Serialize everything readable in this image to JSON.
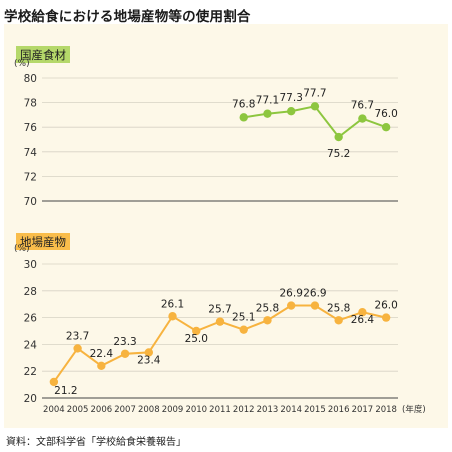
{
  "title": "学校給食における地場産物等の使用割合",
  "source": "資料：文部科学省「学校給食栄養報告」",
  "colors": {
    "national": "#8dc63f",
    "national_label_bg": "#b5d86a",
    "local": "#f7b33f",
    "local_label_bg": "#f9bd4b",
    "panel_bg": "#fdf8e8",
    "grid": "#d7d2c4"
  },
  "chart_data": [
    {
      "type": "line",
      "title": "国産食材",
      "unit_label": "(%)",
      "x": [
        "2012",
        "2013",
        "2014",
        "2015",
        "2016",
        "2017",
        "2018"
      ],
      "y": [
        76.8,
        77.1,
        77.3,
        77.7,
        75.2,
        76.7,
        76.0
      ],
      "data_labels": [
        "76.8",
        "77.1",
        "77.3",
        "77.7",
        "75.2",
        "76.7",
        "76.0"
      ],
      "ylim": [
        70,
        80
      ],
      "yticks": [
        "70",
        "72",
        "74",
        "76",
        "78",
        "80"
      ],
      "grid": true
    },
    {
      "type": "line",
      "title": "地場産物",
      "unit_label": "(%)",
      "x": [
        "2004",
        "2005",
        "2006",
        "2007",
        "2008",
        "2009",
        "2010",
        "2011",
        "2012",
        "2013",
        "2014",
        "2015",
        "2016",
        "2017",
        "2018"
      ],
      "y": [
        21.2,
        23.7,
        22.4,
        23.3,
        23.4,
        26.1,
        25.0,
        25.7,
        25.1,
        25.8,
        26.9,
        26.9,
        25.8,
        26.4,
        26.0
      ],
      "data_labels": [
        "21.2",
        "23.7",
        "22.4",
        "23.3",
        "23.4",
        "26.1",
        "25.0",
        "25.7",
        "25.1",
        "25.8",
        "26.9",
        "26.9",
        "25.8",
        "26.4",
        "26.0"
      ],
      "ylim": [
        20,
        30
      ],
      "yticks": [
        "20",
        "22",
        "24",
        "26",
        "28",
        "30"
      ],
      "grid": true
    }
  ],
  "x_axis": {
    "tick_labels": [
      "2004",
      "2005",
      "2006",
      "2007",
      "2008",
      "2009",
      "2010",
      "2011",
      "2012",
      "2013",
      "2014",
      "2015",
      "2016",
      "2017",
      "2018"
    ],
    "unit": "(年度)"
  }
}
